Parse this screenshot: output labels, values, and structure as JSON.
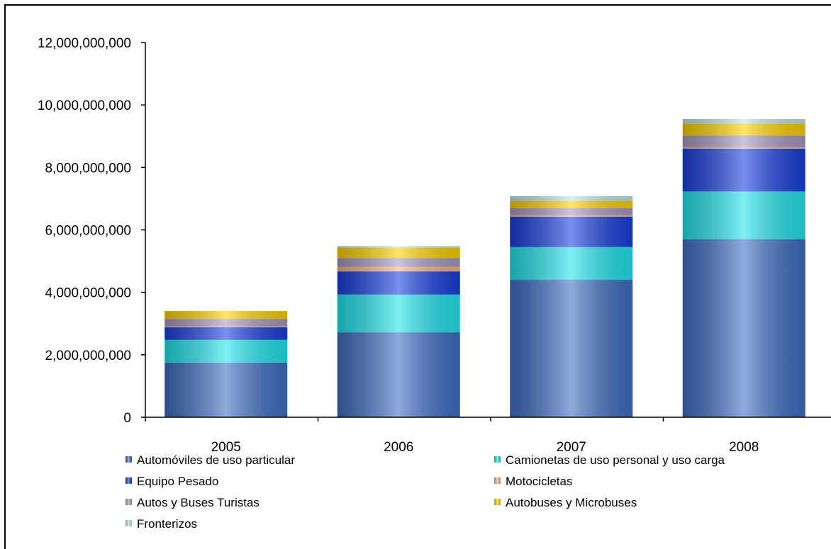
{
  "chart_data": {
    "type": "bar",
    "stacked": true,
    "title": "",
    "xlabel": "",
    "ylabel": "",
    "categories": [
      "2005",
      "2006",
      "2007",
      "2008"
    ],
    "ylim": [
      0,
      12000000000
    ],
    "yticks": [
      "0",
      "2,000,000,000",
      "4,000,000,000",
      "6,000,000,000",
      "8,000,000,000",
      "10,000,000,000",
      "12,000,000,000"
    ],
    "series": [
      {
        "name": "Automóviles de uso particular",
        "color": "#3f6fc4",
        "values": [
          1750000000,
          2720000000,
          4400000000,
          5700000000
        ]
      },
      {
        "name": "Camionetas de uso personal y uso carga",
        "color": "#22e5ee",
        "values": [
          730000000,
          1210000000,
          1050000000,
          1530000000
        ]
      },
      {
        "name": "Equipo Pesado",
        "color": "#1a3fe0",
        "values": [
          400000000,
          740000000,
          970000000,
          1370000000
        ]
      },
      {
        "name": "Motocicletas",
        "color": "#f5b482",
        "values": [
          30000000,
          150000000,
          50000000,
          50000000
        ]
      },
      {
        "name": "Autos y Buses Turistas",
        "color": "#a99ac4",
        "values": [
          240000000,
          280000000,
          230000000,
          370000000
        ]
      },
      {
        "name": "Autobuses y Microbuses",
        "color": "#ffd200",
        "values": [
          250000000,
          330000000,
          220000000,
          380000000
        ]
      },
      {
        "name": "Fronterizos",
        "color": "#bfe6ea",
        "values": [
          0,
          50000000,
          160000000,
          150000000
        ]
      }
    ],
    "legend_position": "bottom",
    "grid": false
  }
}
